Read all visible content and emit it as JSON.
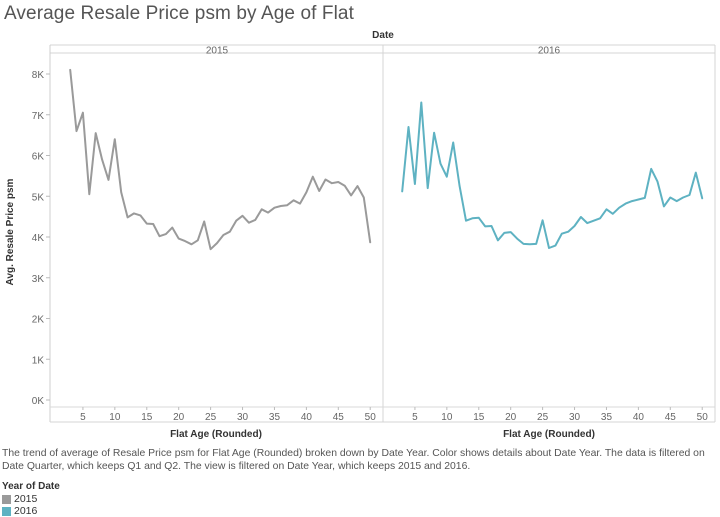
{
  "title": "Average Resale Price psm by Age of Flat",
  "caption": "The trend of average of Resale Price psm for Flat Age (Rounded) broken down by Date Year.  Color shows details about Date Year. The data is filtered on Date Quarter, which keeps Q1 and Q2. The view is filtered on Date Year, which keeps 2015 and 2016.",
  "legend": {
    "title": "Year of Date",
    "items": [
      {
        "label": "2015",
        "color": "#9a9a9a"
      },
      {
        "label": "2016",
        "color": "#5eb2c2"
      }
    ]
  },
  "chart_data": {
    "type": "line",
    "column_header": "Date",
    "ylabel": "Avg. Resale Price psm",
    "xlabel": "Flat Age (Rounded)",
    "ylim": [
      0,
      8000
    ],
    "xlim": [
      0,
      52
    ],
    "y_ticks": [
      0,
      1000,
      2000,
      3000,
      4000,
      5000,
      6000,
      7000,
      8000
    ],
    "y_tick_labels": [
      "0K",
      "1K",
      "2K",
      "3K",
      "4K",
      "5K",
      "6K",
      "7K",
      "8K"
    ],
    "x_ticks": [
      5,
      10,
      15,
      20,
      25,
      30,
      35,
      40,
      45,
      50
    ],
    "grid": false,
    "panels": [
      {
        "name": "2015",
        "color": "#9a9a9a",
        "x": [
          3,
          4,
          5,
          6,
          7,
          8,
          9,
          10,
          11,
          12,
          13,
          14,
          15,
          16,
          17,
          18,
          19,
          20,
          21,
          22,
          23,
          24,
          25,
          26,
          27,
          28,
          29,
          30,
          31,
          32,
          33,
          34,
          35,
          36,
          37,
          38,
          39,
          40,
          41,
          42,
          43,
          44,
          45,
          46,
          47,
          48,
          49,
          50
        ],
        "y": [
          8100,
          6600,
          7050,
          5050,
          6550,
          5900,
          5400,
          6400,
          5100,
          4480,
          4580,
          4530,
          4330,
          4320,
          4020,
          4070,
          4230,
          3960,
          3900,
          3820,
          3920,
          4380,
          3700,
          3850,
          4050,
          4130,
          4400,
          4520,
          4350,
          4420,
          4680,
          4600,
          4720,
          4760,
          4780,
          4900,
          4820,
          5100,
          5480,
          5130,
          5410,
          5320,
          5350,
          5260,
          5020,
          5250,
          4970,
          3870
        ]
      },
      {
        "name": "2016",
        "color": "#5eb2c2",
        "x": [
          3,
          4,
          5,
          6,
          7,
          8,
          9,
          10,
          11,
          12,
          13,
          14,
          15,
          16,
          17,
          18,
          19,
          20,
          21,
          22,
          23,
          24,
          25,
          26,
          27,
          28,
          29,
          30,
          31,
          32,
          33,
          34,
          35,
          36,
          37,
          38,
          39,
          40,
          41,
          42,
          43,
          44,
          45,
          46,
          47,
          48,
          49,
          50
        ],
        "y": [
          5120,
          6700,
          5300,
          7300,
          5200,
          6560,
          5800,
          5480,
          6320,
          5250,
          4400,
          4460,
          4470,
          4260,
          4270,
          3920,
          4100,
          4120,
          3960,
          3830,
          3820,
          3830,
          4410,
          3730,
          3790,
          4080,
          4130,
          4270,
          4490,
          4340,
          4400,
          4460,
          4680,
          4570,
          4720,
          4820,
          4880,
          4920,
          4960,
          5670,
          5360,
          4750,
          4970,
          4880,
          4970,
          5030,
          5580,
          4950
        ]
      }
    ]
  }
}
